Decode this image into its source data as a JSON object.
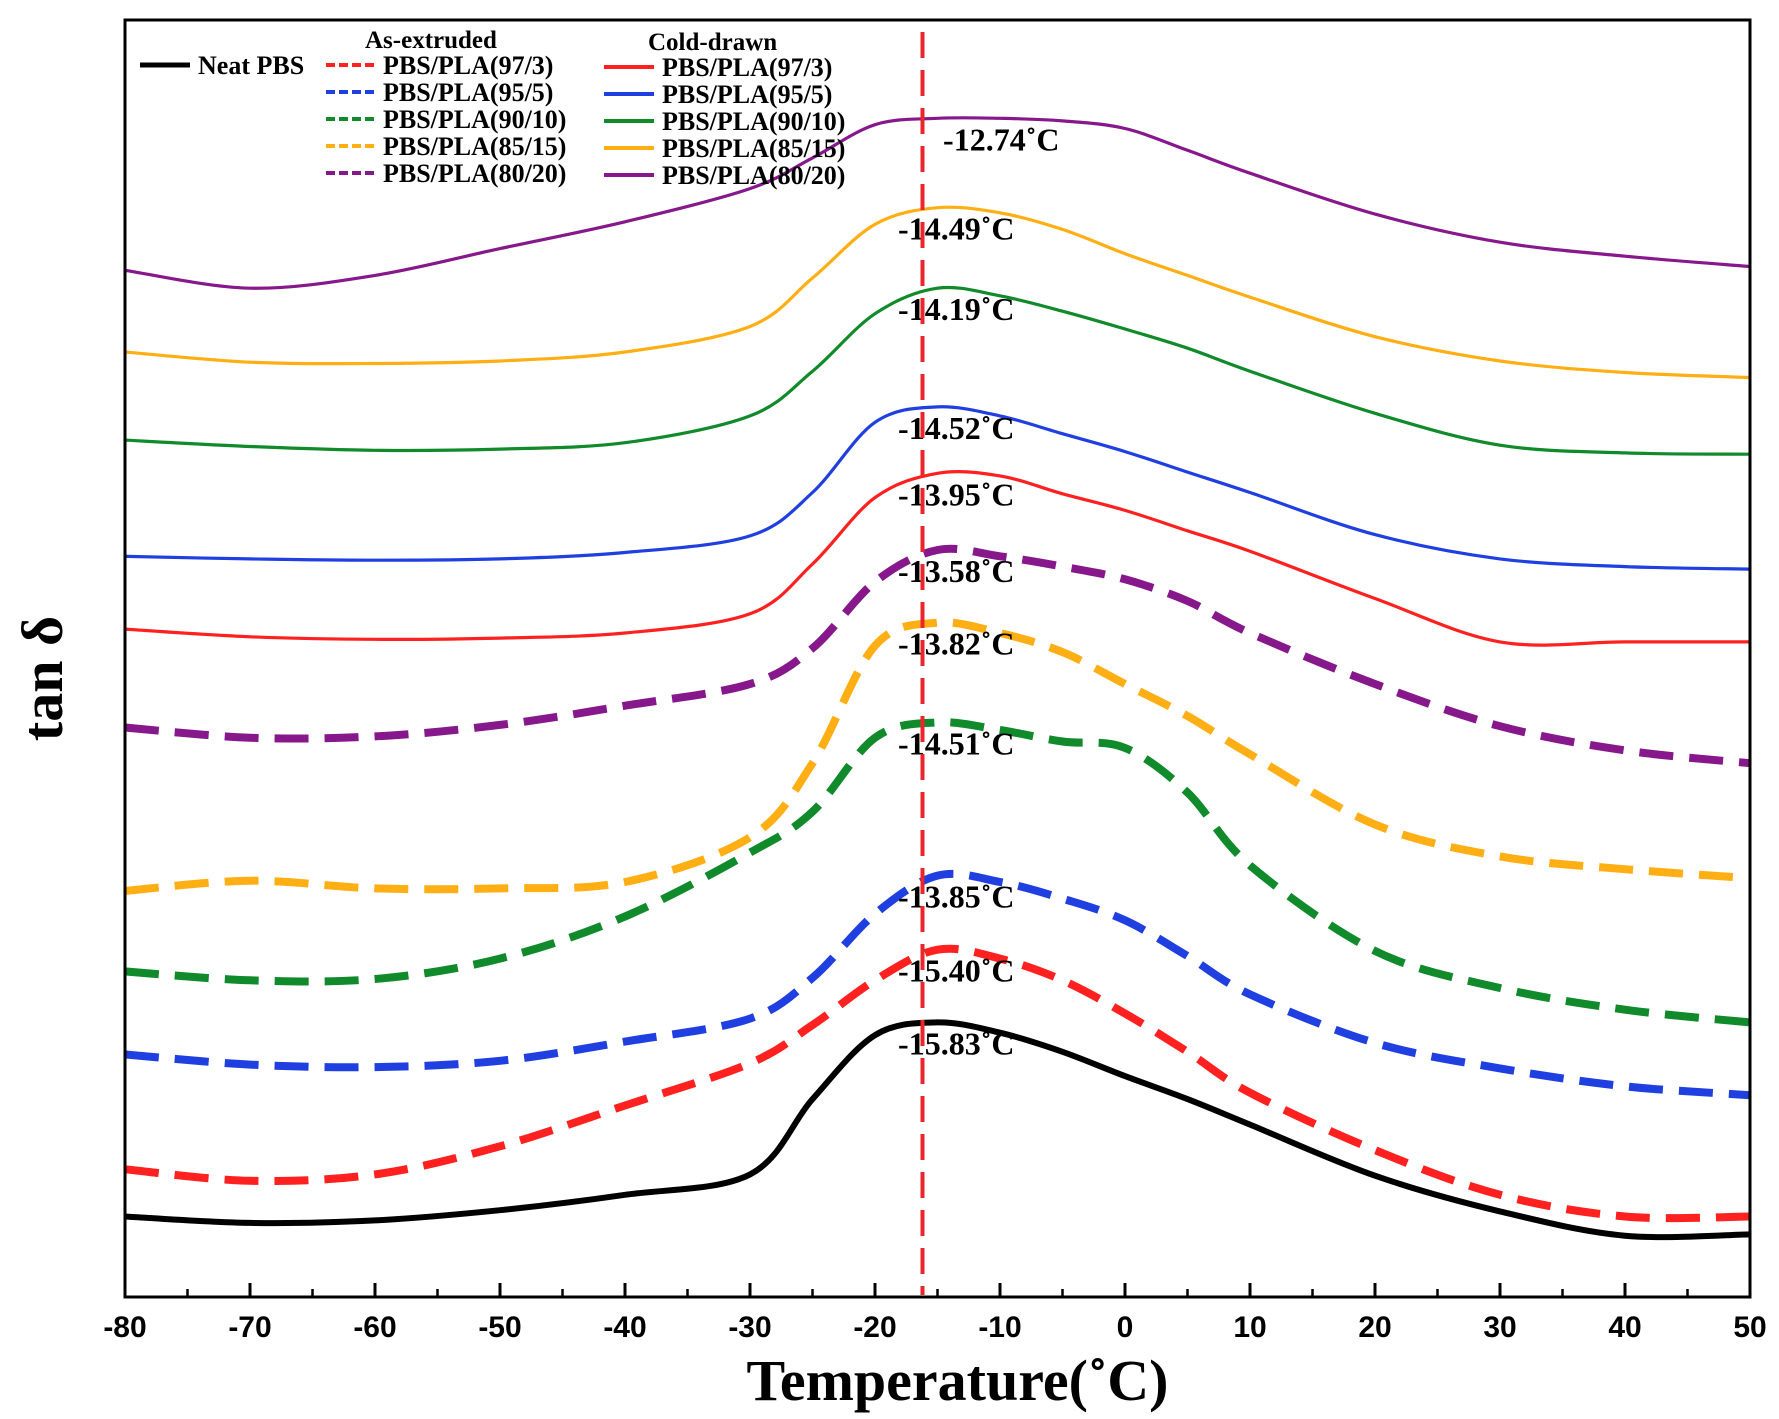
{
  "chart_data": {
    "type": "line",
    "title": "",
    "xlabel": "Temperature(˚C)",
    "ylabel": "tan δ",
    "xlim": [
      -80,
      50
    ],
    "ylim": [
      0,
      1
    ],
    "x_ticks": [
      "-80",
      "-70",
      "-60",
      "-50",
      "-40",
      "-30",
      "-20",
      "-10",
      "0",
      "10",
      "20",
      "30",
      "40",
      "50"
    ],
    "y_ticks_shown": false,
    "reference_line": {
      "x": -16.2,
      "color": "#e8262b",
      "style": "dashed"
    },
    "legend": {
      "neat_label": "Neat PBS",
      "group_as_extruded": "As-extruded",
      "group_cold_drawn": "Cold-drawn"
    },
    "colors": {
      "neat": "#000000",
      "r97": "#ff2020",
      "r95": "#1f3fe0",
      "r90": "#108a2a",
      "r85": "#ffae14",
      "r80": "#86188c"
    },
    "x": [
      -80,
      -70,
      -60,
      -50,
      -40,
      -30,
      -25,
      -20,
      -15,
      -10,
      -5,
      0,
      5,
      10,
      20,
      30,
      40,
      50
    ],
    "series": [
      {
        "name": "Neat PBS",
        "group": "neat",
        "style": "solid",
        "color": "#000000",
        "peak_label": "-15.83˚C",
        "values": [
          0.063,
          0.058,
          0.06,
          0.068,
          0.08,
          0.096,
          0.155,
          0.205,
          0.215,
          0.207,
          0.192,
          0.173,
          0.155,
          0.135,
          0.095,
          0.067,
          0.048,
          0.049
        ]
      },
      {
        "name": "PBS/PLA(97/3)",
        "group": "As-extruded",
        "style": "dashed",
        "color": "#ff2020",
        "peak_label": "-15.40˚C",
        "values": [
          0.1,
          0.091,
          0.096,
          0.118,
          0.15,
          0.183,
          0.213,
          0.248,
          0.272,
          0.265,
          0.248,
          0.222,
          0.192,
          0.16,
          0.115,
          0.08,
          0.063,
          0.063
        ]
      },
      {
        "name": "PBS/PLA(95/5)",
        "group": "As-extruded",
        "style": "dashed",
        "color": "#1f3fe0",
        "peak_label": "-13.85˚C",
        "values": [
          0.19,
          0.182,
          0.18,
          0.185,
          0.2,
          0.218,
          0.25,
          0.3,
          0.33,
          0.325,
          0.312,
          0.295,
          0.267,
          0.237,
          0.199,
          0.179,
          0.165,
          0.158
        ]
      },
      {
        "name": "PBS/PLA(90/10)",
        "group": "As-extruded",
        "style": "dashed",
        "color": "#108a2a",
        "peak_label": "-14.51˚C",
        "values": [
          0.255,
          0.248,
          0.249,
          0.265,
          0.298,
          0.348,
          0.38,
          0.438,
          0.45,
          0.444,
          0.435,
          0.43,
          0.395,
          0.338,
          0.271,
          0.242,
          0.225,
          0.215
        ]
      },
      {
        "name": "PBS/PLA(85/15)",
        "group": "As-extruded",
        "style": "dashed",
        "color": "#ffae14",
        "peak_label": "-13.82˚C",
        "values": [
          0.318,
          0.326,
          0.32,
          0.32,
          0.325,
          0.36,
          0.418,
          0.51,
          0.528,
          0.52,
          0.505,
          0.48,
          0.455,
          0.425,
          0.37,
          0.345,
          0.335,
          0.328
        ]
      },
      {
        "name": "PBS/PLA(80/20)",
        "group": "As-extruded",
        "style": "dashed",
        "color": "#86188c",
        "peak_label": "-13.58˚C",
        "values": [
          0.446,
          0.438,
          0.439,
          0.448,
          0.463,
          0.48,
          0.508,
          0.56,
          0.585,
          0.58,
          0.572,
          0.562,
          0.545,
          0.52,
          0.48,
          0.447,
          0.428,
          0.418
        ]
      },
      {
        "name": "PBS/PLA(97/3)",
        "group": "Cold-drawn",
        "style": "solid",
        "color": "#ff2020",
        "peak_label": "-13.95˚C",
        "values": [
          0.523,
          0.517,
          0.515,
          0.516,
          0.52,
          0.535,
          0.574,
          0.626,
          0.645,
          0.643,
          0.629,
          0.616,
          0.6,
          0.584,
          0.547,
          0.513,
          0.513,
          0.513
        ]
      },
      {
        "name": "PBS/PLA(95/5)",
        "group": "Cold-drawn",
        "style": "solid",
        "color": "#1f3fe0",
        "peak_label": "-14.52˚C",
        "values": [
          0.58,
          0.578,
          0.577,
          0.578,
          0.583,
          0.596,
          0.63,
          0.685,
          0.697,
          0.69,
          0.676,
          0.662,
          0.646,
          0.63,
          0.597,
          0.578,
          0.572,
          0.57
        ]
      },
      {
        "name": "PBS/PLA(90/10)",
        "group": "Cold-drawn",
        "style": "solid",
        "color": "#108a2a",
        "peak_label": "-14.19˚C",
        "values": [
          0.671,
          0.666,
          0.663,
          0.664,
          0.669,
          0.69,
          0.725,
          0.77,
          0.79,
          0.784,
          0.772,
          0.758,
          0.743,
          0.725,
          0.692,
          0.667,
          0.661,
          0.66
        ]
      },
      {
        "name": "PBS/PLA(85/15)",
        "group": "Cold-drawn",
        "style": "solid",
        "color": "#ffae14",
        "peak_label": "-14.49˚C",
        "values": [
          0.74,
          0.732,
          0.731,
          0.733,
          0.74,
          0.76,
          0.798,
          0.84,
          0.853,
          0.849,
          0.836,
          0.817,
          0.8,
          0.783,
          0.752,
          0.733,
          0.724,
          0.72
        ]
      },
      {
        "name": "PBS/PLA(80/20)",
        "group": "Cold-drawn",
        "style": "solid",
        "color": "#86188c",
        "peak_label": "-12.74˚C",
        "values": [
          0.804,
          0.79,
          0.8,
          0.821,
          0.842,
          0.868,
          0.892,
          0.918,
          0.923,
          0.923,
          0.921,
          0.915,
          0.898,
          0.88,
          0.848,
          0.826,
          0.815,
          0.807
        ]
      }
    ]
  }
}
